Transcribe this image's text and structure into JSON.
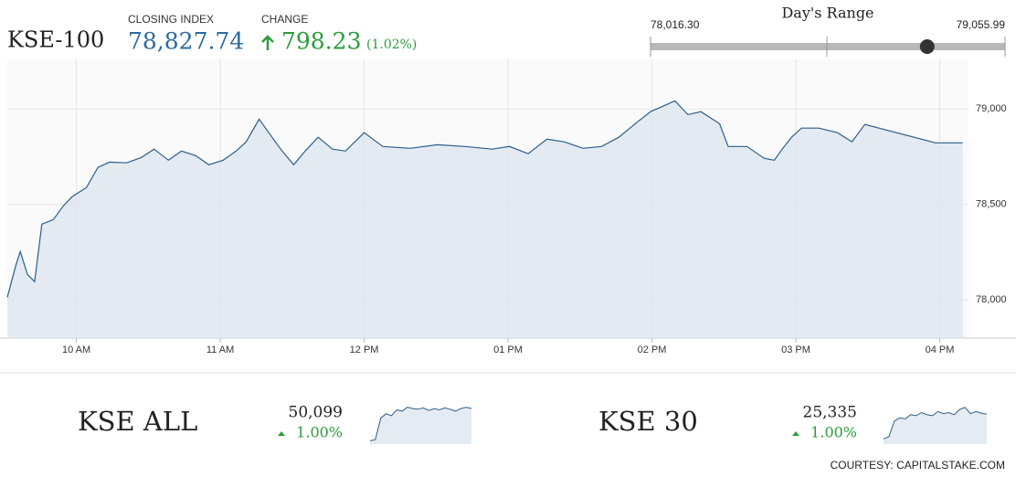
{
  "header": {
    "name": "KSE-100",
    "closing_label": "CLOSING INDEX",
    "closing": {
      "value": 78827.74,
      "label": "78,827.74"
    },
    "change_label": "CHANGE",
    "change": "798.23",
    "change_pct": "(1.02%)"
  },
  "range": {
    "title": "Day's Range",
    "low": {
      "value": 78016.3,
      "label": "78,016.30"
    },
    "high": {
      "value": 79055.99,
      "label": "79,055.99"
    }
  },
  "chart_data": [
    {
      "type": "area",
      "color": "#2c5f8a",
      "grid": true,
      "x": [
        9.52,
        9.58,
        9.61,
        9.66,
        9.71,
        9.76,
        9.84,
        9.91,
        9.97,
        10.07,
        10.15,
        10.23,
        10.35,
        10.45,
        10.54,
        10.64,
        10.73,
        10.83,
        10.92,
        11.02,
        11.11,
        11.18,
        11.27,
        11.37,
        11.43,
        11.51,
        11.59,
        11.68,
        11.78,
        11.87,
        12.0,
        12.13,
        12.32,
        12.51,
        12.7,
        12.89,
        13.01,
        13.14,
        13.27,
        13.39,
        13.52,
        13.65,
        13.77,
        13.9,
        13.99,
        14.09,
        14.16,
        14.25,
        14.34,
        14.47,
        14.53,
        14.66,
        14.78,
        14.85,
        14.91,
        14.97,
        15.04,
        15.16,
        15.29,
        15.39,
        15.48,
        15.97,
        16.16
      ],
      "values": [
        78014,
        78182,
        78254,
        78134,
        78096,
        78397,
        78421,
        78493,
        78541,
        78589,
        78694,
        78722,
        78718,
        78746,
        78790,
        78732,
        78780,
        78756,
        78708,
        78732,
        78780,
        78828,
        78947,
        78842,
        78780,
        78708,
        78780,
        78852,
        78790,
        78780,
        78876,
        78804,
        78794,
        78813,
        78804,
        78790,
        78804,
        78766,
        78842,
        78828,
        78794,
        78804,
        78852,
        78933,
        78986,
        79019,
        79043,
        78971,
        78986,
        78923,
        78804,
        78804,
        78742,
        78732,
        78794,
        78852,
        78900,
        78900,
        78876,
        78828,
        78919,
        78823,
        78823
      ],
      "xlim": [
        9.52,
        16.2
      ],
      "ylim": [
        77800,
        79260
      ],
      "xticks": [
        {
          "value": 10,
          "label": "10 AM"
        },
        {
          "value": 11,
          "label": "11 AM"
        },
        {
          "value": 12,
          "label": "12 PM"
        },
        {
          "value": 13,
          "label": "01 PM"
        },
        {
          "value": 14,
          "label": "02 PM"
        },
        {
          "value": 15,
          "label": "03 PM"
        },
        {
          "value": 16,
          "label": "04 PM"
        }
      ],
      "yticks": [
        {
          "value": 78000,
          "label": "78,000"
        },
        {
          "value": 78500,
          "label": "78,500"
        },
        {
          "value": 79000,
          "label": "79,000"
        }
      ]
    },
    {
      "type": "area",
      "title": "KSE ALL",
      "value": "50,099",
      "change": "1.00%",
      "color": "#2c5f8a",
      "values": [
        49600,
        49620,
        49950,
        50020,
        49990,
        50080,
        50060,
        50120,
        50100,
        50090,
        50110,
        50070,
        50100,
        50080,
        50110,
        50090,
        50060,
        50100,
        50120,
        50099
      ],
      "ylim": [
        49550,
        50200
      ]
    },
    {
      "type": "area",
      "title": "KSE 30",
      "value": "25,335",
      "change": "1.00%",
      "color": "#2c5f8a",
      "values": [
        25100,
        25120,
        25270,
        25300,
        25290,
        25330,
        25320,
        25350,
        25330,
        25320,
        25360,
        25340,
        25350,
        25330,
        25380,
        25400,
        25340,
        25360,
        25345,
        25335
      ],
      "ylim": [
        25050,
        25450
      ]
    }
  ],
  "footer": "COURTESY: CAPITALSTAKE.COM"
}
